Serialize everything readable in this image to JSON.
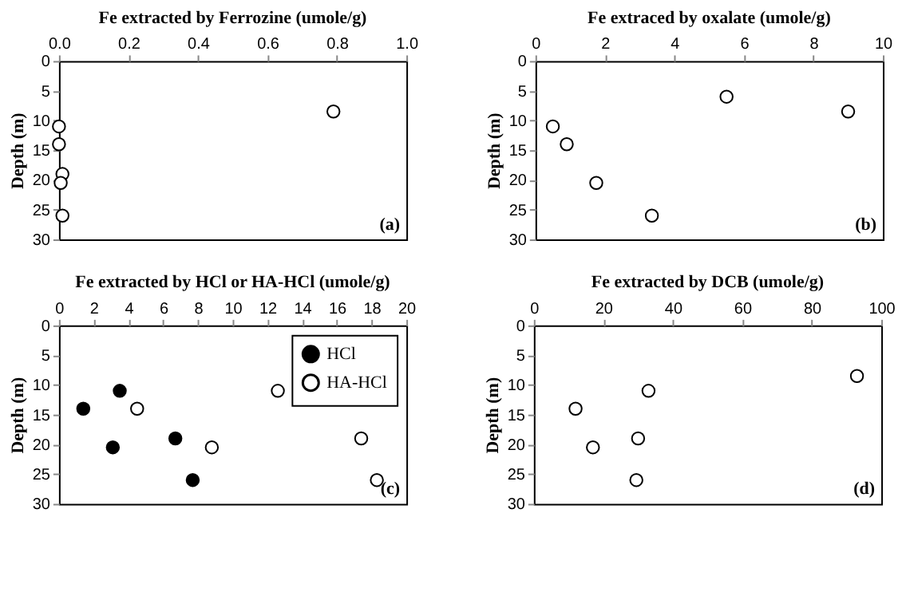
{
  "chart_data": [
    {
      "type": "scatter",
      "title": "Fe extracted by Ferrozine (umole/g)",
      "ylabel": "Depth (m)",
      "xlim": [
        0,
        1
      ],
      "xticks": [
        {
          "value": 0,
          "label": "0.0"
        },
        0.2,
        0.4,
        0.6,
        0.8,
        {
          "value": 1,
          "label": "1.0"
        }
      ],
      "ylim": [
        30,
        0
      ],
      "yticks": [
        0,
        5,
        10,
        15,
        20,
        25,
        30
      ],
      "marker": "circle",
      "grid": false,
      "legend": false,
      "annotations": [
        "(a)"
      ],
      "series": [
        {
          "color": "#ffffff",
          "x": [
            0.79,
            0.0,
            0.0,
            0.01,
            0.005,
            0.01
          ],
          "values": [
            8.5,
            11,
            14,
            19,
            20.5,
            26
          ]
        }
      ]
    },
    {
      "type": "scatter",
      "title": "Fe extraced by oxalate (umole/g)",
      "ylabel": "Depth (m)",
      "xlim": [
        0,
        10
      ],
      "xticks": [
        0,
        2,
        4,
        6,
        8,
        10
      ],
      "ylim": [
        30,
        0
      ],
      "yticks": [
        0,
        5,
        10,
        15,
        20,
        25,
        30
      ],
      "marker": "circle",
      "grid": false,
      "legend": false,
      "annotations": [
        "(b)"
      ],
      "series": [
        {
          "color": "#ffffff",
          "x": [
            5.5,
            9.0,
            0.5,
            0.9,
            1.75,
            3.35
          ],
          "values": [
            6,
            8.5,
            11,
            14,
            20.5,
            26
          ]
        }
      ]
    },
    {
      "type": "scatter",
      "title": "Fe extracted by HCl or HA-HCl (umole/g)",
      "ylabel": "Depth (m)",
      "xlim": [
        0,
        20
      ],
      "xticks": [
        0,
        2,
        4,
        6,
        8,
        10,
        12,
        14,
        16,
        18,
        20
      ],
      "ylim": [
        30,
        0
      ],
      "yticks": [
        0,
        5,
        10,
        15,
        20,
        25,
        30
      ],
      "marker": "circle",
      "grid": false,
      "legend": "top right",
      "annotations": [
        "(c)"
      ],
      "series": [
        {
          "name": "HCl",
          "color": "#000000",
          "x": [
            3.5,
            1.4,
            6.7,
            3.1,
            7.7
          ],
          "values": [
            11,
            14,
            19,
            20.5,
            26
          ]
        },
        {
          "name": "HA-HCl",
          "color": "#ffffff",
          "x": [
            12.6,
            4.5,
            17.4,
            8.8,
            18.3
          ],
          "values": [
            11,
            14,
            19,
            20.5,
            26
          ]
        }
      ]
    },
    {
      "type": "scatter",
      "title": "Fe extracted by DCB (umole/g)",
      "ylabel": "Depth (m)",
      "xlim": [
        0,
        100
      ],
      "xticks": [
        0,
        20,
        40,
        60,
        80,
        100
      ],
      "ylim": [
        30,
        0
      ],
      "yticks": [
        0,
        5,
        10,
        15,
        20,
        25,
        30
      ],
      "marker": "circle",
      "grid": false,
      "legend": false,
      "annotations": [
        "(d)"
      ],
      "series": [
        {
          "color": "#ffffff",
          "x": [
            93,
            33,
            12,
            30,
            17,
            29.5
          ],
          "values": [
            8.5,
            11,
            14,
            19,
            20.5,
            26
          ]
        }
      ]
    }
  ]
}
